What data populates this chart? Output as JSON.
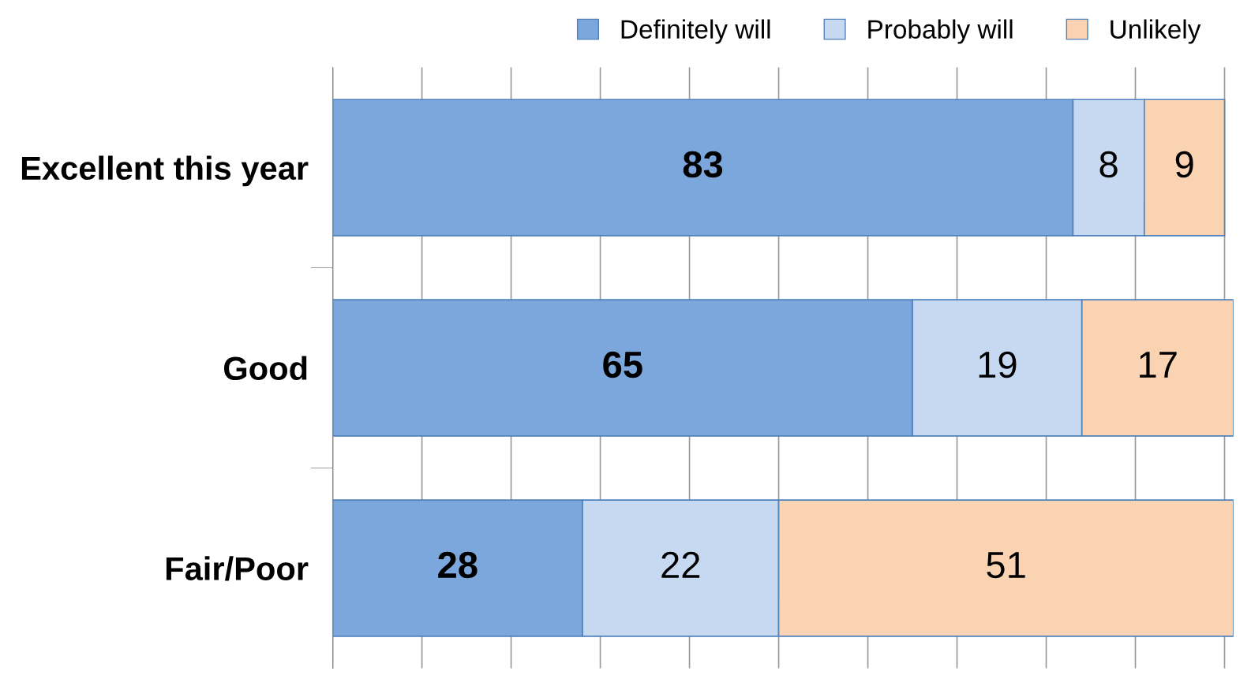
{
  "chart_data": {
    "type": "bar",
    "orientation": "horizontal",
    "stacked": true,
    "categories": [
      "Excellent this year",
      "Good",
      "Fair/Poor"
    ],
    "series": [
      {
        "name": "Definitely will",
        "color": "#7ba7dc",
        "values": [
          83,
          65,
          28
        ]
      },
      {
        "name": "Probably will",
        "color": "#c6d9f1",
        "values": [
          8,
          19,
          22
        ]
      },
      {
        "name": "Unlikely",
        "color": "#fad3b3",
        "values": [
          9,
          17,
          51
        ]
      }
    ],
    "xlim": [
      0,
      101
    ],
    "xticks": [
      {
        "value": 0,
        "label": null
      },
      {
        "value": 10,
        "label": null
      },
      {
        "value": 20,
        "label": null
      },
      {
        "value": 30,
        "label": null
      },
      {
        "value": 40,
        "label": null
      },
      {
        "value": 50,
        "label": null
      },
      {
        "value": 60,
        "label": null
      },
      {
        "value": 70,
        "label": null
      },
      {
        "value": 80,
        "label": null
      },
      {
        "value": 90,
        "label": null
      },
      {
        "value": 100,
        "label": null
      }
    ],
    "tick_labels": "y",
    "grid": "x",
    "legend": "top right",
    "data_labels": true
  }
}
